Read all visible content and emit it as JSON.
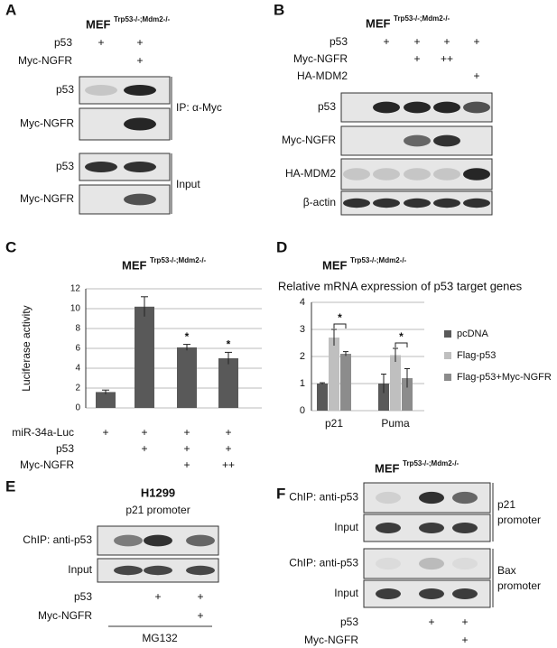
{
  "panels": {
    "A": {
      "letter": "A",
      "cell_line": "MEF",
      "genotype": "Trp53-/-;Mdm2-/-",
      "treatments": [
        {
          "label": "p53",
          "marks": [
            "+",
            "+"
          ]
        },
        {
          "label": "Myc-NGFR",
          "marks": [
            null,
            "+"
          ]
        }
      ],
      "blots": [
        "p53",
        "Myc-NGFR",
        "p53",
        "Myc-NGFR"
      ],
      "groups": [
        "IP: α-Myc",
        "Input"
      ]
    },
    "B": {
      "letter": "B",
      "cell_line": "MEF",
      "genotype": "Trp53-/-;Mdm2-/-",
      "treatments": [
        {
          "label": "p53",
          "marks": [
            null,
            "+",
            "+",
            "+",
            "+"
          ]
        },
        {
          "label": "Myc-NGFR",
          "marks": [
            null,
            null,
            "+",
            "++",
            null
          ]
        },
        {
          "label": "HA-MDM2",
          "marks": [
            null,
            null,
            null,
            null,
            "+"
          ]
        }
      ],
      "blots": [
        "p53",
        "Myc-NGFR",
        "HA-MDM2",
        "β-actin"
      ]
    },
    "C": {
      "letter": "C",
      "cell_line": "MEF",
      "genotype": "Trp53-/-;Mdm2-/-",
      "treatments": [
        {
          "label": "miR-34a-Luc",
          "marks": [
            "+",
            "+",
            "+",
            "+"
          ]
        },
        {
          "label": "p53",
          "marks": [
            null,
            "+",
            "+",
            "+"
          ]
        },
        {
          "label": "Myc-NGFR",
          "marks": [
            null,
            null,
            "+",
            "++"
          ]
        }
      ]
    },
    "D": {
      "letter": "D",
      "cell_line": "MEF",
      "genotype": "Trp53-/-;Mdm2-/-"
    },
    "E": {
      "letter": "E",
      "cell_line": "H1299",
      "subtitle": "p21 promoter",
      "blots": [
        "ChIP: anti-p53",
        "Input"
      ],
      "treatments": [
        {
          "label": "p53",
          "marks": [
            null,
            "+",
            "+"
          ]
        },
        {
          "label": "Myc-NGFR",
          "marks": [
            null,
            null,
            "+"
          ]
        }
      ],
      "condition": "MG132"
    },
    "F": {
      "letter": "F",
      "cell_line": "MEF",
      "genotype": "Trp53-/-;Mdm2-/-",
      "blots": [
        "ChIP: anti-p53",
        "Input",
        "ChIP: anti-p53",
        "Input"
      ],
      "groups": [
        [
          "p21",
          "promoter"
        ],
        [
          "Bax",
          "promoter"
        ]
      ],
      "treatments": [
        {
          "label": "p53",
          "marks": [
            null,
            "+",
            "+"
          ]
        },
        {
          "label": "Myc-NGFR",
          "marks": [
            null,
            null,
            "+"
          ]
        }
      ]
    }
  },
  "chart_data": [
    {
      "type": "bar",
      "y_label": "Luciferase activity",
      "values": [
        1.6,
        10.2,
        6.1,
        5.0
      ],
      "errors": [
        0.2,
        1.0,
        0.3,
        0.6
      ],
      "annotations": [
        null,
        null,
        "*",
        "*"
      ],
      "color": "#595959",
      "ylim": [
        0,
        12
      ],
      "yticks": [
        0,
        2,
        4,
        6,
        8,
        10,
        12
      ],
      "grid": true
    },
    {
      "type": "grouped_bar",
      "title": "Relative mRNA expression of p53 target genes",
      "categories": [
        "p21",
        "Puma"
      ],
      "series": [
        {
          "name": "pcDNA",
          "color": "#595959",
          "values": [
            1.0,
            1.0
          ],
          "errors": [
            0.03,
            0.35
          ]
        },
        {
          "name": "Flag-p53",
          "color": "#bfbfbf",
          "values": [
            2.7,
            2.05
          ],
          "errors": [
            0.3,
            0.25
          ]
        },
        {
          "name": "Flag-p53+Myc-NGFR",
          "color": "#8c8c8c",
          "values": [
            2.1,
            1.2
          ],
          "errors": [
            0.08,
            0.35
          ]
        }
      ],
      "annotations": [
        "*",
        "*"
      ],
      "ylim": [
        0,
        4
      ],
      "yticks": [
        0,
        1,
        2,
        3,
        4
      ],
      "grid": true
    }
  ]
}
